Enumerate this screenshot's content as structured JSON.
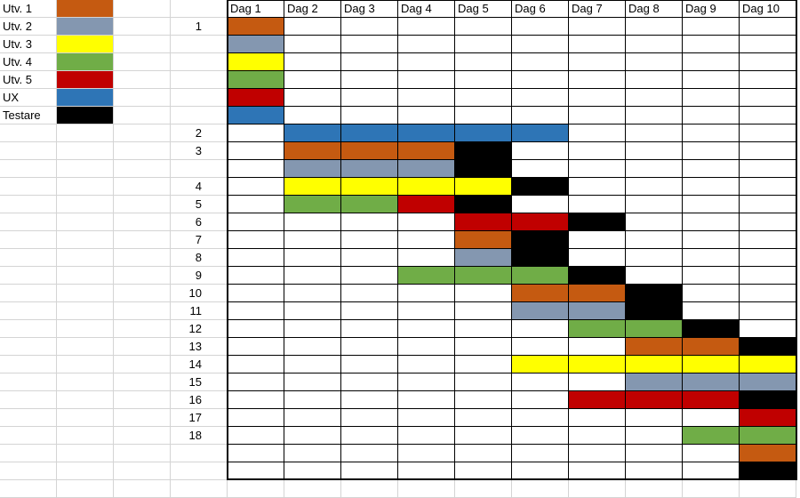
{
  "colors": {
    "utv1": "#c55a11",
    "utv2": "#8497b0",
    "utv3": "#ffff00",
    "utv4": "#70ad47",
    "utv5": "#c00000",
    "ux": "#2e75b6",
    "testare": "#000000"
  },
  "legend": [
    {
      "label": "Utv. 1",
      "key": "utv1"
    },
    {
      "label": "Utv. 2",
      "key": "utv2"
    },
    {
      "label": "Utv. 3",
      "key": "utv3"
    },
    {
      "label": "Utv. 4",
      "key": "utv4"
    },
    {
      "label": "Utv. 5",
      "key": "utv5"
    },
    {
      "label": "UX",
      "key": "ux"
    },
    {
      "label": "Testare",
      "key": "testare"
    }
  ],
  "days": [
    "Dag 1",
    "Dag 2",
    "Dag 3",
    "Dag 4",
    "Dag 5",
    "Dag 6",
    "Dag 7",
    "Dag 8",
    "Dag 9",
    "Dag 10"
  ],
  "row_numbers": [
    "1",
    "",
    "",
    "",
    "",
    "",
    "2",
    "3",
    "",
    "4",
    "5",
    "6",
    "7",
    "8",
    "9",
    "10",
    "11",
    "12",
    "13",
    "14",
    "15",
    "16",
    "17",
    "18",
    "",
    ""
  ],
  "schedule": [
    [
      "utv1",
      "",
      "",
      "",
      "",
      "",
      "",
      "",
      "",
      ""
    ],
    [
      "utv2",
      "",
      "",
      "",
      "",
      "",
      "",
      "",
      "",
      ""
    ],
    [
      "utv3",
      "",
      "",
      "",
      "",
      "",
      "",
      "",
      "",
      ""
    ],
    [
      "utv4",
      "",
      "",
      "",
      "",
      "",
      "",
      "",
      "",
      ""
    ],
    [
      "utv5",
      "",
      "",
      "",
      "",
      "",
      "",
      "",
      "",
      ""
    ],
    [
      "ux",
      "",
      "",
      "",
      "",
      "",
      "",
      "",
      "",
      ""
    ],
    [
      "",
      "ux",
      "ux",
      "ux",
      "ux",
      "ux",
      "",
      "",
      "",
      ""
    ],
    [
      "",
      "utv1",
      "utv1",
      "utv1",
      "testare",
      "",
      "",
      "",
      "",
      ""
    ],
    [
      "",
      "utv2",
      "utv2",
      "utv2",
      "testare",
      "",
      "",
      "",
      "",
      ""
    ],
    [
      "",
      "utv3",
      "utv3",
      "utv3",
      "utv3",
      "testare",
      "",
      "",
      "",
      ""
    ],
    [
      "",
      "utv4",
      "utv4",
      "utv5",
      "testare",
      "",
      "",
      "",
      "",
      ""
    ],
    [
      "",
      "",
      "",
      "",
      "utv5",
      "utv5",
      "testare",
      "",
      "",
      ""
    ],
    [
      "",
      "",
      "",
      "",
      "utv1",
      "testare",
      "",
      "",
      "",
      ""
    ],
    [
      "",
      "",
      "",
      "",
      "utv2",
      "testare",
      "",
      "",
      "",
      ""
    ],
    [
      "",
      "",
      "",
      "utv4",
      "utv4",
      "utv4",
      "testare",
      "",
      "",
      ""
    ],
    [
      "",
      "",
      "",
      "",
      "",
      "utv1",
      "utv1",
      "testare",
      "",
      ""
    ],
    [
      "",
      "",
      "",
      "",
      "",
      "utv2",
      "utv2",
      "testare",
      "",
      ""
    ],
    [
      "",
      "",
      "",
      "",
      "",
      "",
      "utv4",
      "utv4",
      "testare",
      ""
    ],
    [
      "",
      "",
      "",
      "",
      "",
      "",
      "",
      "utv1",
      "utv1",
      "testare"
    ],
    [
      "",
      "",
      "",
      "",
      "",
      "utv3",
      "utv3",
      "utv3",
      "utv3",
      "utv3"
    ],
    [
      "",
      "",
      "",
      "",
      "",
      "",
      "",
      "utv2",
      "utv2",
      "utv2"
    ],
    [
      "",
      "",
      "",
      "",
      "",
      "",
      "utv5",
      "utv5",
      "utv5",
      "testare"
    ],
    [
      "",
      "",
      "",
      "",
      "",
      "",
      "",
      "",
      "",
      "utv5"
    ],
    [
      "",
      "",
      "",
      "",
      "",
      "",
      "",
      "",
      "utv4",
      "utv4"
    ],
    [
      "",
      "",
      "",
      "",
      "",
      "",
      "",
      "",
      "",
      "utv1"
    ],
    [
      "",
      "",
      "",
      "",
      "",
      "",
      "",
      "",
      "",
      "testare"
    ]
  ]
}
